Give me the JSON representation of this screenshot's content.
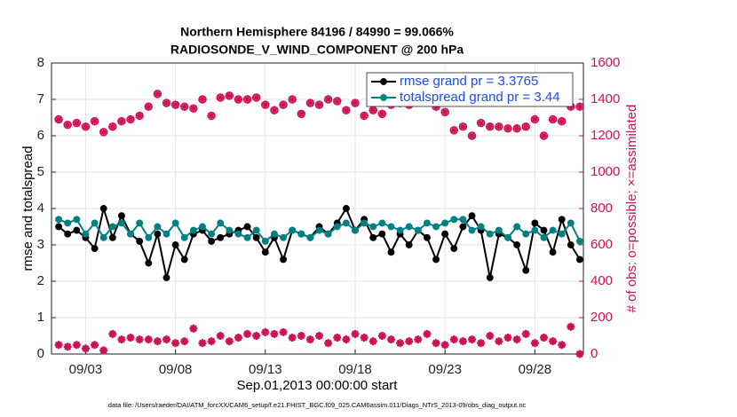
{
  "chart_data": {
    "type": "line",
    "title": "Northern Hemisphere 84196 / 84990 = 99.066%",
    "subtitle": "RADIOSONDE_V_WIND_COMPONENT @ 200 hPa",
    "x_label": "Sep.01,2013 00:00:00 start",
    "y_label": "rmse and totalspread",
    "y2_label": "# of obs: o=possible; ×=assimilated",
    "footnote": "data file: /Users/raeder/DAI/ATM_forcXX/CAM6_setup/f.e21.FHIST_BGC.f09_025.CAM6assim.011/Diags_NTrS_2013-09/obs_diag_output.nc",
    "x": [
      1.5,
      2,
      2.5,
      3,
      3.5,
      4,
      4.5,
      5,
      5.5,
      6,
      6.5,
      7,
      7.5,
      8,
      8.5,
      9,
      9.5,
      10,
      10.5,
      11,
      11.5,
      12,
      12.5,
      13,
      13.5,
      14,
      14.5,
      15,
      15.5,
      16,
      16.5,
      17,
      17.5,
      18,
      18.5,
      19,
      19.5,
      20,
      20.5,
      21,
      21.5,
      22,
      22.5,
      23,
      23.5,
      24,
      24.5,
      25,
      25.5,
      26,
      26.5,
      27,
      27.5,
      28,
      28.5,
      29,
      29.5,
      30,
      30.5
    ],
    "xlim": [
      1.1,
      30.7
    ],
    "xticks": [
      {
        "value": 3,
        "label": "09/03"
      },
      {
        "value": 8,
        "label": "09/08"
      },
      {
        "value": 13,
        "label": "09/13"
      },
      {
        "value": 18,
        "label": "09/18"
      },
      {
        "value": 23,
        "label": "09/23"
      },
      {
        "value": 28,
        "label": "09/28"
      }
    ],
    "ylim": [
      0,
      8
    ],
    "yticks": [
      0,
      1,
      2,
      3,
      4,
      5,
      6,
      7,
      8
    ],
    "y2lim": [
      0,
      1600
    ],
    "y2ticks": [
      0,
      200,
      400,
      600,
      800,
      1000,
      1200,
      1400,
      1600
    ],
    "grid": true,
    "legend": "upper right",
    "series": [
      {
        "name": "rmse grand pr = 3.3765",
        "color": "#000000",
        "marker": "o",
        "linestyle": "solid",
        "values": [
          3.5,
          3.3,
          3.4,
          3.2,
          2.9,
          4.0,
          3.2,
          3.8,
          3.3,
          3.1,
          2.5,
          3.3,
          2.1,
          3.0,
          2.6,
          3.3,
          3.4,
          3.1,
          3.2,
          3.3,
          3.4,
          3.5,
          3.2,
          2.8,
          3.2,
          2.6,
          3.4,
          3.3,
          3.2,
          3.5,
          3.3,
          3.6,
          4.0,
          3.4,
          3.7,
          3.2,
          3.3,
          2.8,
          3.3,
          3.0,
          3.4,
          3.2,
          2.6,
          3.3,
          2.9,
          3.5,
          3.8,
          3.4,
          2.1,
          3.3,
          3.2,
          3.0,
          2.3,
          3.6,
          3.4,
          2.8,
          3.7,
          3.0,
          2.6
        ]
      },
      {
        "name": "totalspread grand pr = 3.44",
        "color": "#008080",
        "marker": "o",
        "linestyle": "solid",
        "values": [
          3.7,
          3.6,
          3.7,
          3.3,
          3.6,
          3.2,
          3.5,
          3.6,
          3.3,
          3.6,
          3.2,
          3.5,
          3.3,
          3.6,
          3.2,
          3.4,
          3.5,
          3.3,
          3.6,
          3.4,
          3.3,
          3.2,
          3.4,
          3.1,
          3.3,
          3.2,
          3.4,
          3.3,
          3.2,
          3.4,
          3.3,
          3.5,
          3.6,
          3.4,
          3.6,
          3.5,
          3.6,
          3.5,
          3.4,
          3.5,
          3.4,
          3.6,
          3.5,
          3.6,
          3.7,
          3.7,
          3.4,
          3.5,
          3.3,
          3.4,
          3.2,
          3.5,
          3.3,
          3.4,
          3.2,
          3.4,
          3.3,
          3.6,
          3.1
        ]
      },
      {
        "color": "#cc1155",
        "marker": "o*",
        "linestyle": "none",
        "axis": "y2",
        "values": [
          1290,
          1260,
          1270,
          1250,
          1280,
          1220,
          1250,
          1280,
          1290,
          1310,
          1360,
          1430,
          1380,
          1370,
          1360,
          1350,
          1400,
          1310,
          1410,
          1420,
          1400,
          1400,
          1410,
          1370,
          1340,
          1370,
          1400,
          1320,
          1380,
          1370,
          1400,
          1390,
          1340,
          1380,
          1310,
          1340,
          1320,
          1370,
          1380,
          1370,
          1440,
          1420,
          1360,
          1330,
          1230,
          1250,
          1200,
          1270,
          1250,
          1250,
          1240,
          1240,
          1250,
          1290,
          1200,
          1290,
          1280,
          1360,
          1360
        ]
      },
      {
        "color": "#cc1155",
        "marker": "*",
        "linestyle": "none",
        "axis": "y2",
        "values": [
          50,
          40,
          50,
          30,
          50,
          20,
          110,
          80,
          90,
          80,
          80,
          70,
          80,
          60,
          70,
          140,
          60,
          70,
          100,
          70,
          90,
          110,
          100,
          120,
          110,
          120,
          90,
          100,
          80,
          100,
          60,
          90,
          80,
          110,
          90,
          70,
          100,
          80,
          60,
          70,
          80,
          110,
          60,
          50,
          80,
          70,
          80,
          60,
          100,
          70,
          90,
          80,
          110,
          60,
          90,
          70,
          50,
          150,
          0
        ]
      }
    ]
  }
}
